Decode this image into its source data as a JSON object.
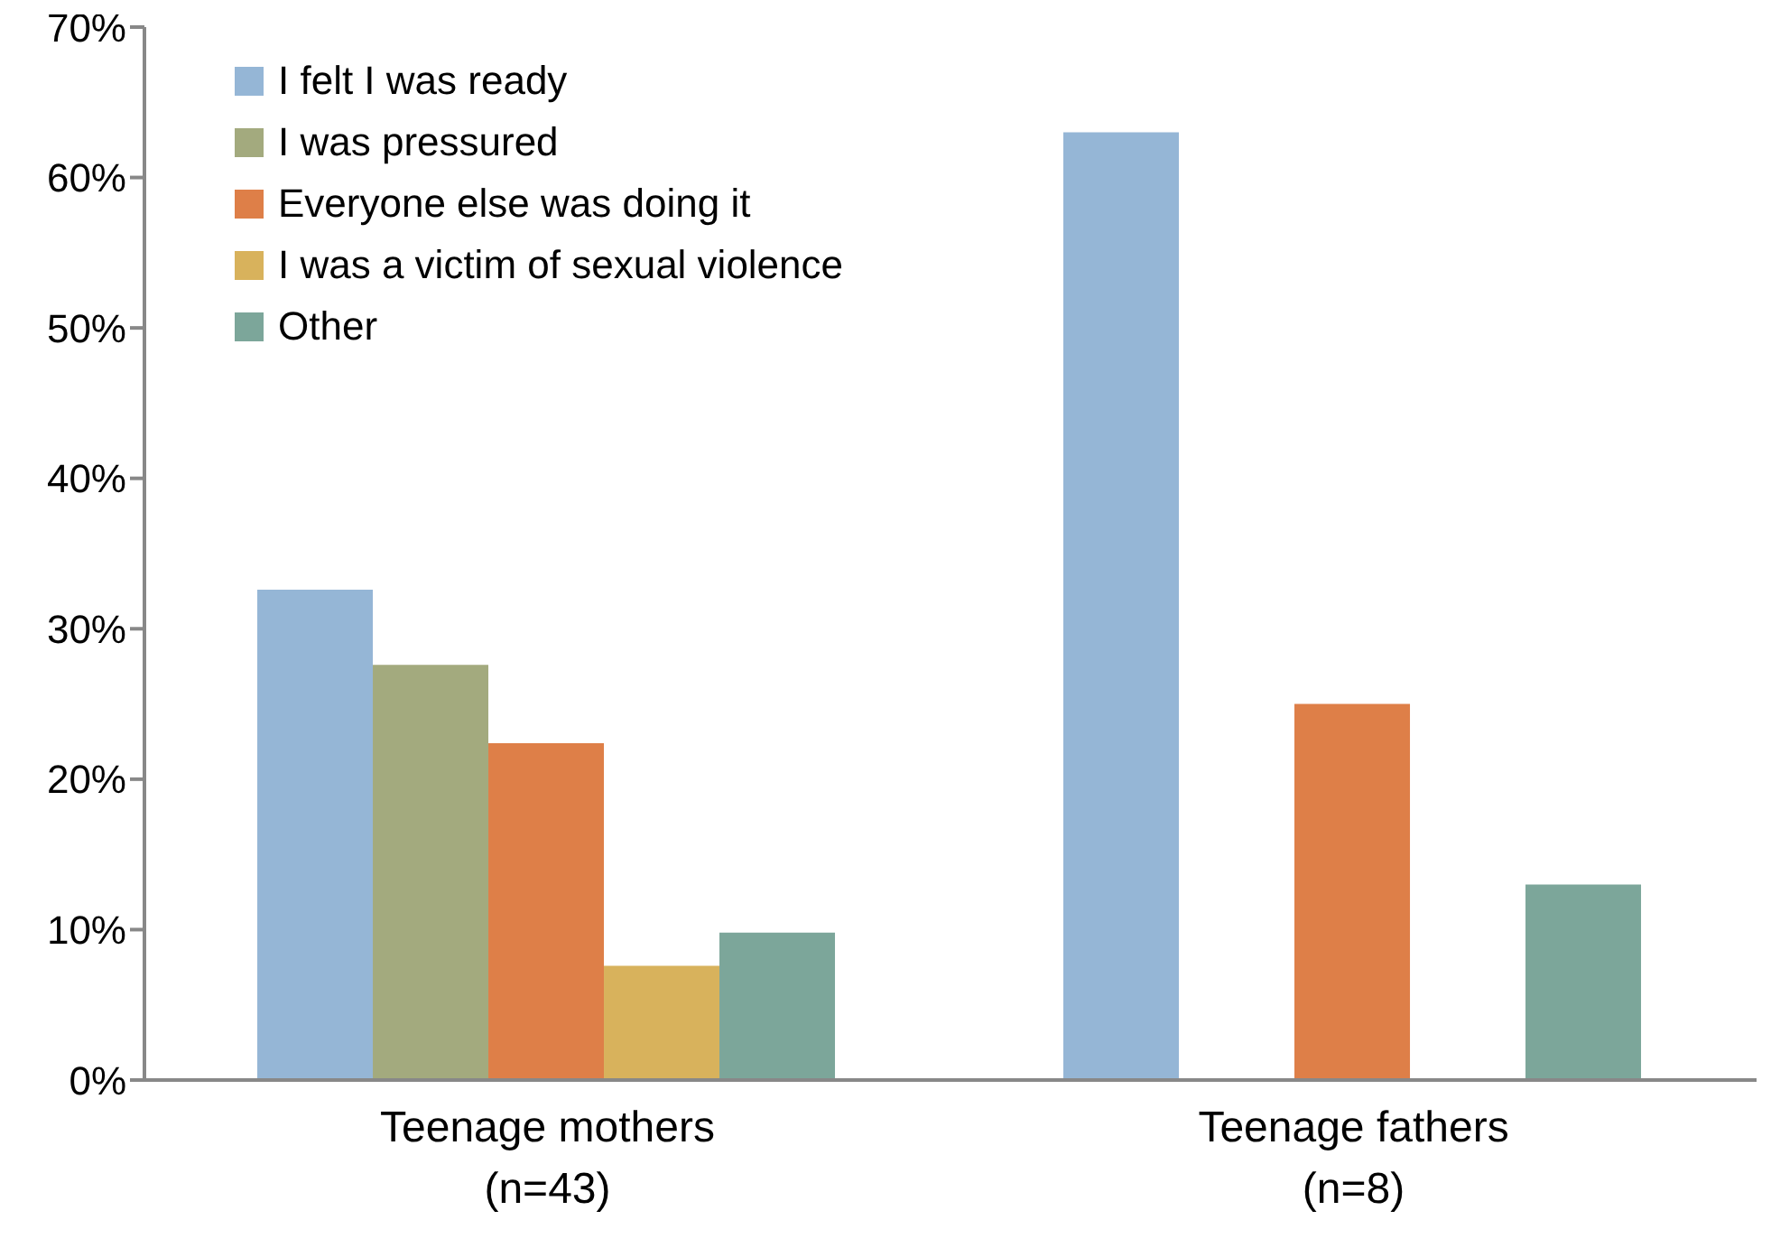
{
  "chart_data": {
    "type": "bar",
    "categories": [
      "Teenage mothers\n(n=43)",
      "Teenage fathers\n(n=8)"
    ],
    "series": [
      {
        "name": "I felt I was ready",
        "color": "#95b6d6",
        "values": [
          32.6,
          63
        ]
      },
      {
        "name": "I was pressured",
        "color": "#a3aa7e",
        "values": [
          27.6,
          0
        ]
      },
      {
        "name": "Everyone else was doing it",
        "color": "#de7f48",
        "values": [
          22.4,
          25
        ]
      },
      {
        "name": "I was a victim of sexual violence",
        "color": "#d8b25c",
        "values": [
          7.6,
          0
        ]
      },
      {
        "name": "Other",
        "color": "#7ca69a",
        "values": [
          9.8,
          13
        ]
      }
    ],
    "ylim": [
      0,
      70
    ],
    "yticks": [
      {
        "value": 0,
        "label": "0%"
      },
      {
        "value": 10,
        "label": "10%"
      },
      {
        "value": 20,
        "label": "20%"
      },
      {
        "value": 30,
        "label": "30%"
      },
      {
        "value": 40,
        "label": "40%"
      },
      {
        "value": 50,
        "label": "50%"
      },
      {
        "value": 60,
        "label": "60%"
      },
      {
        "value": 70,
        "label": "70%"
      }
    ],
    "grid": false,
    "legend": "top left"
  }
}
